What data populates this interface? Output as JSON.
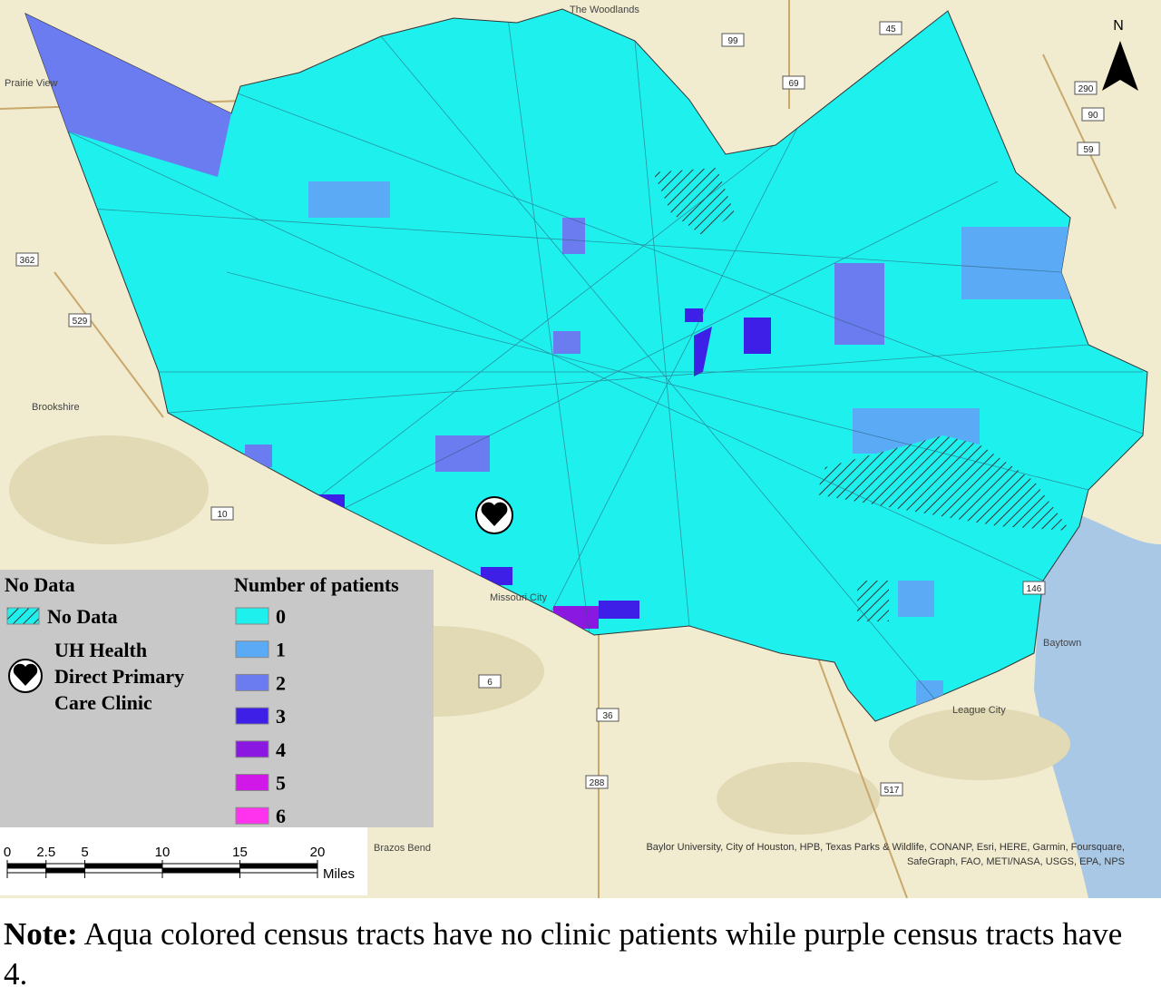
{
  "map": {
    "north": "N",
    "place_labels": [
      "The Woodlands",
      "Prairie View",
      "Brookshire",
      "Missouri City",
      "League City",
      "Baytown",
      "Brazos Bend"
    ],
    "road_labels": [
      "99",
      "69",
      "45",
      "290",
      "59",
      "362",
      "529",
      "90",
      "10",
      "146",
      "288",
      "517",
      "6",
      "36"
    ],
    "attribution": [
      "Baylor University, City of Houston, HPB, Texas Parks & Wildlife, CONANP, Esri, HERE, Garmin, Foursquare,",
      "SafeGraph, FAO, METI/NASA, USGS, EPA, NPS"
    ]
  },
  "legend": {
    "no_data_title": "No Data",
    "no_data_item": "No Data",
    "clinic_item": [
      "UH Health",
      "Direct Primary",
      "Care Clinic"
    ],
    "patients_title": "Number of patients",
    "classes": [
      {
        "label": "0",
        "color": "#1ef0ee"
      },
      {
        "label": "1",
        "color": "#5aaaf5"
      },
      {
        "label": "2",
        "color": "#6b7cf0"
      },
      {
        "label": "3",
        "color": "#3d1fe8"
      },
      {
        "label": "4",
        "color": "#8a18e0"
      },
      {
        "label": "5",
        "color": "#d018e8"
      },
      {
        "label": "6",
        "color": "#ff33ee"
      }
    ]
  },
  "scale_bar": {
    "ticks": [
      0,
      2.5,
      5,
      10,
      15,
      20
    ],
    "unit": "Miles"
  },
  "note": {
    "bold": "Note:",
    "text": "Aqua colored census tracts have no clinic patients while purple census tracts have 4."
  }
}
